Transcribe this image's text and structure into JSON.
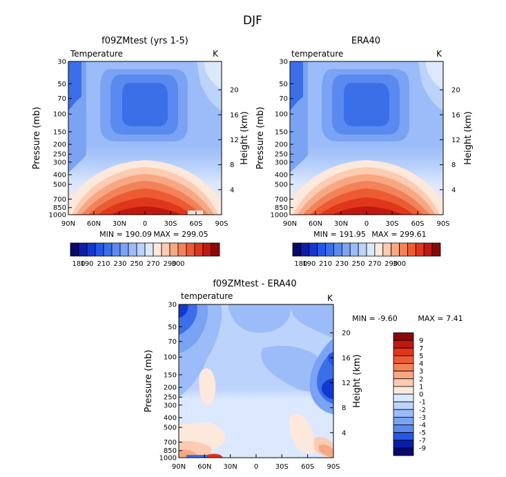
{
  "figure_title": "DJF",
  "chart_data": [
    {
      "type": "heatmap",
      "title": "f09ZMtest (yrs 1-5)",
      "left_label": "Temperature",
      "units": "K",
      "xlabel": "",
      "ylabel": "Pressure (mb)",
      "right_label": "Height (km)",
      "x_ticks": [
        "90N",
        "60N",
        "30N",
        "0",
        "30S",
        "60S",
        "90S"
      ],
      "y_ticks": [
        "30",
        "50",
        "70",
        "100",
        "150",
        "200",
        "250",
        "300",
        "400",
        "500",
        "700",
        "850",
        "1000"
      ],
      "height_ticks": [
        "20",
        "16",
        "12",
        "8",
        "4"
      ],
      "min_label": "MIN = 190.09",
      "max_label": "MAX = 299.05",
      "colorbar_labels": [
        "180",
        "190",
        "210",
        "230",
        "250",
        "270",
        "290",
        "300"
      ]
    },
    {
      "type": "heatmap",
      "title": "ERA40",
      "left_label": "temperature",
      "units": "K",
      "xlabel": "",
      "ylabel": "Pressure (mb)",
      "right_label": "Height (km)",
      "x_ticks": [
        "90N",
        "60N",
        "30N",
        "0",
        "30S",
        "60S",
        "90S"
      ],
      "y_ticks": [
        "30",
        "50",
        "70",
        "100",
        "150",
        "200",
        "250",
        "300",
        "400",
        "500",
        "700",
        "850",
        "1000"
      ],
      "height_ticks": [
        "20",
        "16",
        "12",
        "8",
        "4"
      ],
      "min_label": "MIN = 191.95",
      "max_label": "MAX = 299.61",
      "colorbar_labels": [
        "180",
        "190",
        "210",
        "230",
        "250",
        "270",
        "290",
        "300"
      ]
    },
    {
      "type": "heatmap",
      "title": "f09ZMtest - ERA40",
      "left_label": "temperature",
      "units": "K",
      "xlabel": "",
      "ylabel": "Pressure (mb)",
      "right_label": "Height (km)",
      "x_ticks": [
        "90N",
        "60N",
        "30N",
        "0",
        "30S",
        "60S",
        "90S"
      ],
      "y_ticks": [
        "30",
        "50",
        "70",
        "100",
        "150",
        "200",
        "250",
        "300",
        "400",
        "500",
        "700",
        "850",
        "1000"
      ],
      "height_ticks": [
        "20",
        "16",
        "12",
        "8",
        "4"
      ],
      "min_label": "MIN = -9.60",
      "max_label": "MAX = 7.41",
      "colorbar_labels": [
        "9",
        "7",
        "5",
        "4",
        "3",
        "2",
        "1",
        "0",
        "-1",
        "-2",
        "-3",
        "-4",
        "-5",
        "-7",
        "-9"
      ]
    }
  ],
  "colors": {
    "temp_scale": [
      "#08086e",
      "#0c1ea8",
      "#1238d0",
      "#2457e6",
      "#3b6fe8",
      "#5a8af0",
      "#7aa3f4",
      "#9bbcf8",
      "#bcd3fb",
      "#dce8fd",
      "#fde8dc",
      "#fbcbb2",
      "#f7a882",
      "#f28259",
      "#ec5b33",
      "#e0361a",
      "#c01810",
      "#8c0808"
    ],
    "diff_scale": [
      "#8c0808",
      "#c01810",
      "#e0361a",
      "#ec5b33",
      "#f28259",
      "#f7a882",
      "#fbcbb2",
      "#fde8dc",
      "#dce8fd",
      "#bcd3fb",
      "#9bbcf8",
      "#7aa3f4",
      "#5a8af0",
      "#2457e6",
      "#0c1ea8",
      "#08086e"
    ]
  }
}
